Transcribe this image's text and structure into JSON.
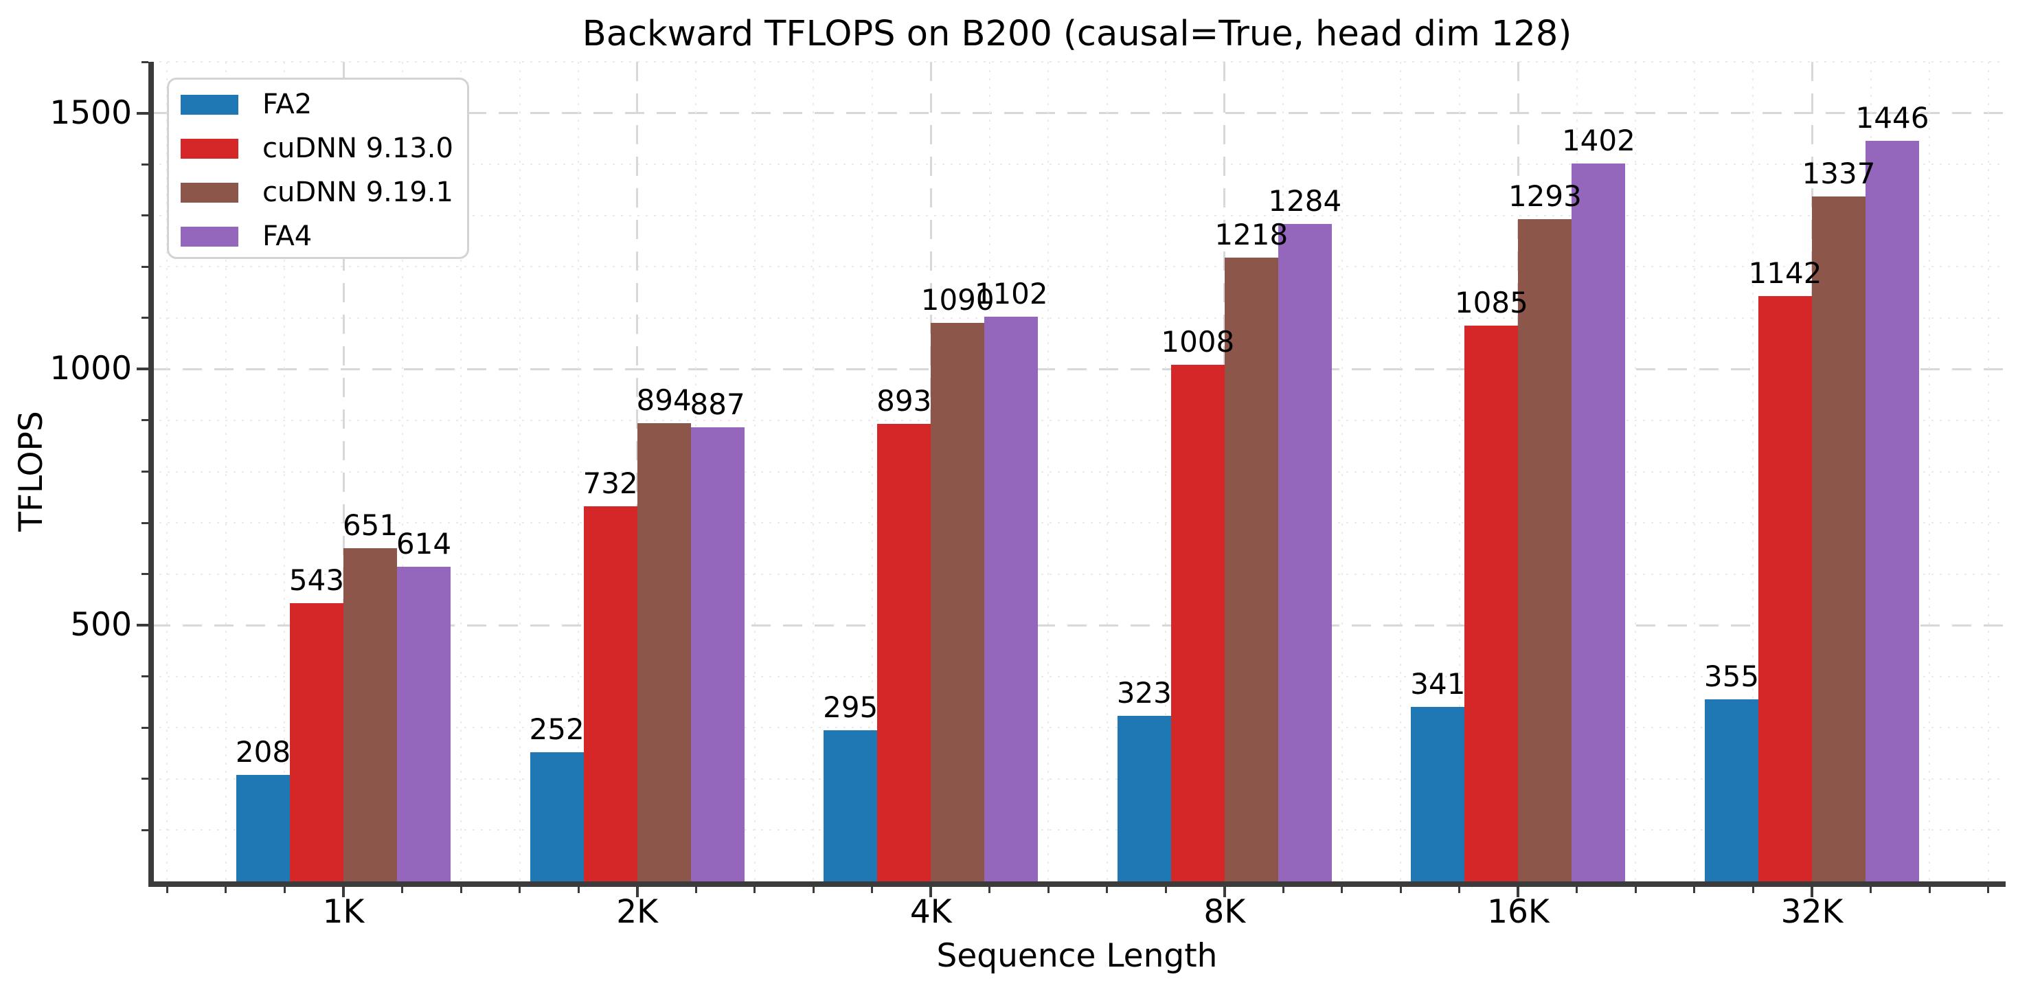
{
  "chart_data": {
    "type": "bar",
    "title": "Backward TFLOPS on B200 (causal=True, head dim 128)",
    "xlabel": "Sequence Length",
    "ylabel": "TFLOPS",
    "categories": [
      "1K",
      "2K",
      "4K",
      "8K",
      "16K",
      "32K"
    ],
    "series": [
      {
        "name": "FA2",
        "color": "#1f77b4",
        "values": [
          208,
          252,
          295,
          323,
          341,
          355
        ]
      },
      {
        "name": "cuDNN 9.13.0",
        "color": "#d62728",
        "values": [
          543,
          732,
          893,
          1008,
          1085,
          1142
        ]
      },
      {
        "name": "cuDNN 9.19.1",
        "color": "#8c564b",
        "values": [
          651,
          894,
          1090,
          1218,
          1293,
          1337
        ]
      },
      {
        "name": "FA4",
        "color": "#9467bd",
        "values": [
          614,
          887,
          1102,
          1284,
          1402,
          1446
        ]
      }
    ],
    "ylim": [
      0,
      1600
    ],
    "yticks_major": [
      500,
      1000,
      1500
    ],
    "ytick_minor_step": 100,
    "x_minor_divisions_per_group": 5,
    "grid": true,
    "legend_position": "upper-left",
    "bar_value_labels_shown": true
  },
  "style": {
    "background": "#ffffff",
    "text_color": "#000000",
    "spine_color": "#3b3b3b",
    "tick_color": "#3b3b3b",
    "grid_major_color": "#d8d8d8",
    "grid_minor_color": "#eaeaea",
    "legend_border_color": "#d3d3d3"
  }
}
